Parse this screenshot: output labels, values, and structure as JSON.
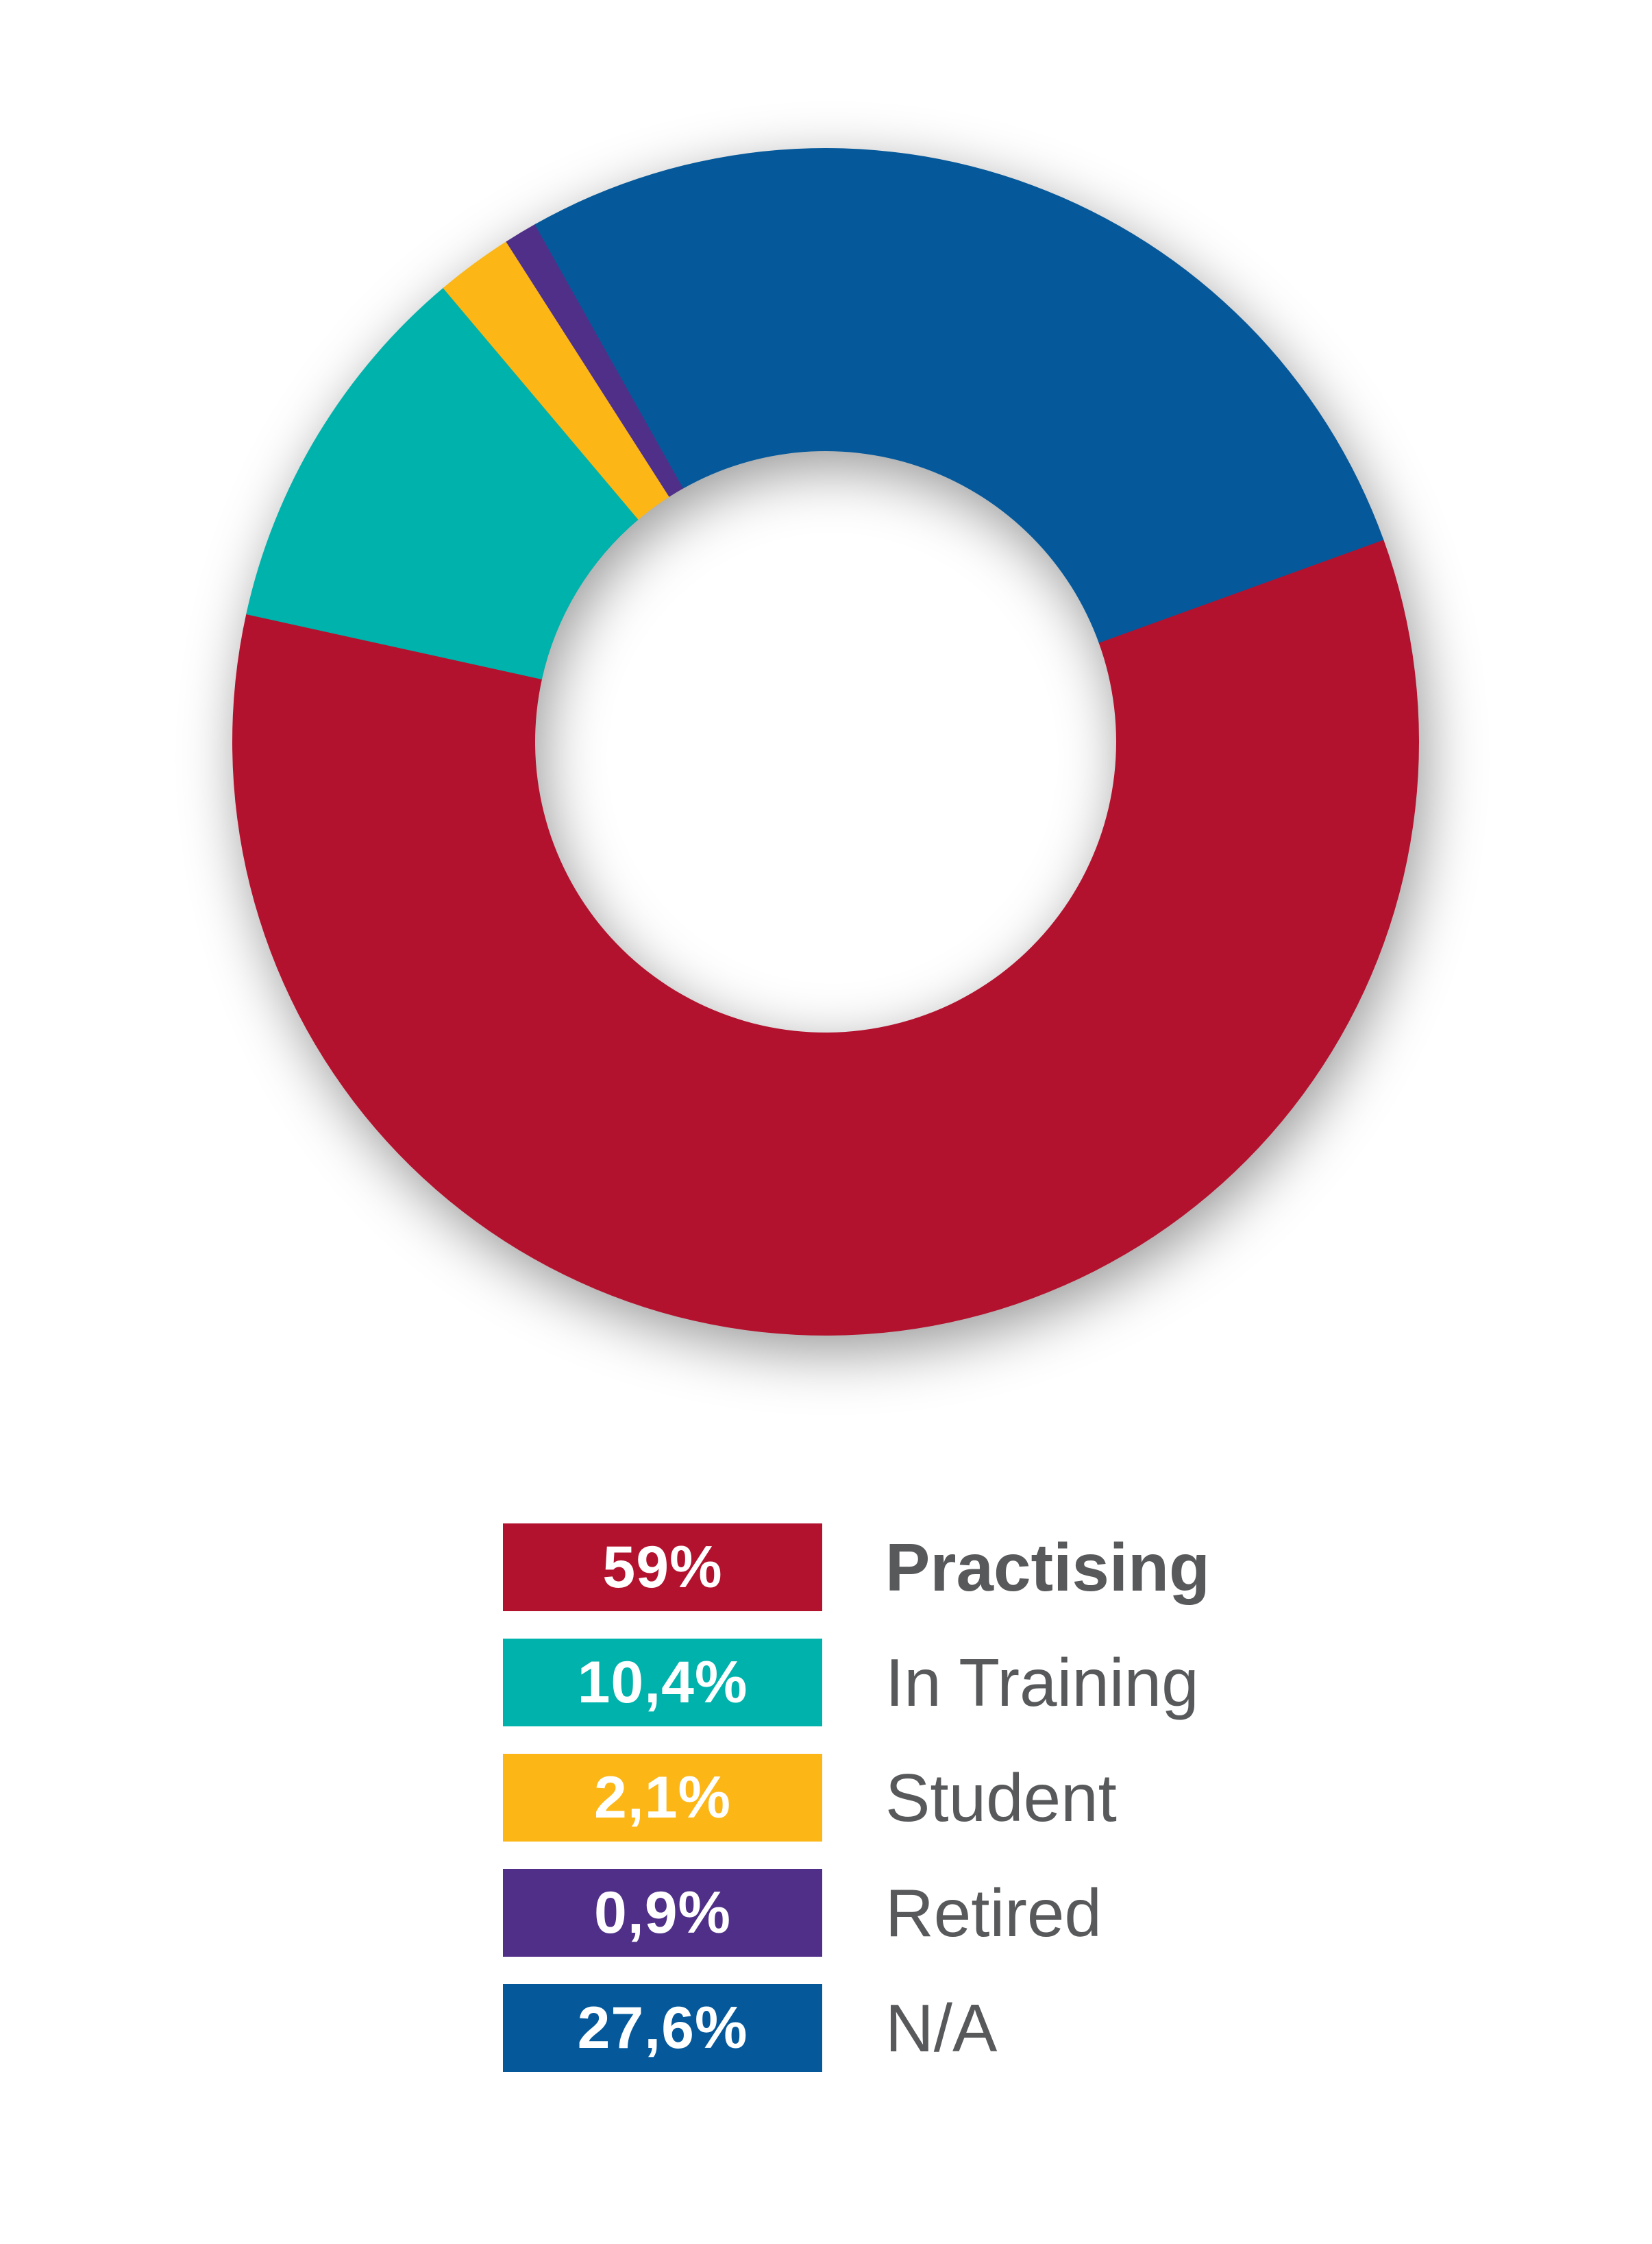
{
  "chart_data": {
    "type": "pie",
    "subtype": "donut",
    "direction": "clockwise",
    "start_angle_deg": 70,
    "inner_radius_ratio": 0.49,
    "legend_position": "bottom-left",
    "background_color": "#FFFFFF",
    "label_text_color": "#58595B",
    "value_text_color": "#FFFFFF",
    "categories": [
      "Practising",
      "In Training",
      "Student",
      "Retired",
      "N/A"
    ],
    "values": [
      59,
      10.4,
      2.1,
      0.9,
      27.6
    ],
    "slices": [
      {
        "label": "Practising",
        "value": 59,
        "value_label": "59%",
        "color": "#B3122E",
        "emphasis": true
      },
      {
        "label": "In Training",
        "value": 10.4,
        "value_label": "10,4%",
        "color": "#00B2AC",
        "emphasis": false
      },
      {
        "label": "Student",
        "value": 2.1,
        "value_label": "2,1%",
        "color": "#FCB615",
        "emphasis": false
      },
      {
        "label": "Retired",
        "value": 0.9,
        "value_label": "0,9%",
        "color": "#502F88",
        "emphasis": false
      },
      {
        "label": "N/A",
        "value": 27.6,
        "value_label": "27,6%",
        "color": "#05599B",
        "emphasis": false
      }
    ]
  }
}
